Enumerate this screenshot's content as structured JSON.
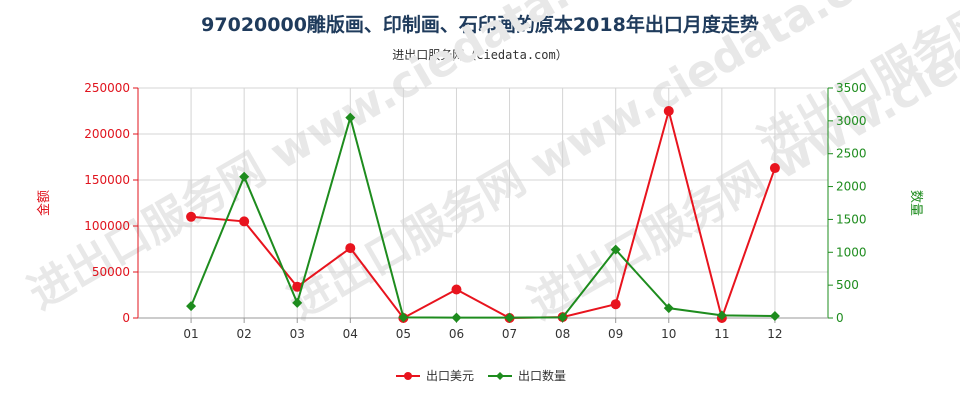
{
  "chart_data": {
    "type": "line",
    "title": "97020000雕版画、印制画、石印画的原本2018年出口月度走势",
    "subtitle": "进出口服务网（ciedata.com）",
    "watermark": "进出口服务网 www.ciedata.com",
    "categories": [
      "01",
      "02",
      "03",
      "04",
      "05",
      "06",
      "07",
      "08",
      "09",
      "10",
      "11",
      "12"
    ],
    "ylabel_left": "金额",
    "ylabel_right": "数量",
    "ylim_left": [
      0,
      250000
    ],
    "ylim_right": [
      0,
      3500
    ],
    "yticks_left": [
      0,
      50000,
      100000,
      150000,
      200000,
      250000
    ],
    "yticks_right": [
      0,
      500,
      1000,
      1500,
      2000,
      2500,
      3000,
      3500
    ],
    "grid": true,
    "legend_position": "bottom",
    "series": [
      {
        "name": "出口美元",
        "axis": "left",
        "color": "#e8141e",
        "marker": "circle",
        "values": [
          110000,
          105000,
          34000,
          76000,
          0,
          31000,
          0,
          1000,
          15000,
          225000,
          0,
          163000
        ]
      },
      {
        "name": "出口数量",
        "axis": "right",
        "color": "#1e8c1e",
        "marker": "diamond",
        "values": [
          180,
          2150,
          230,
          3050,
          10,
          5,
          5,
          10,
          1040,
          150,
          40,
          30
        ]
      }
    ]
  }
}
